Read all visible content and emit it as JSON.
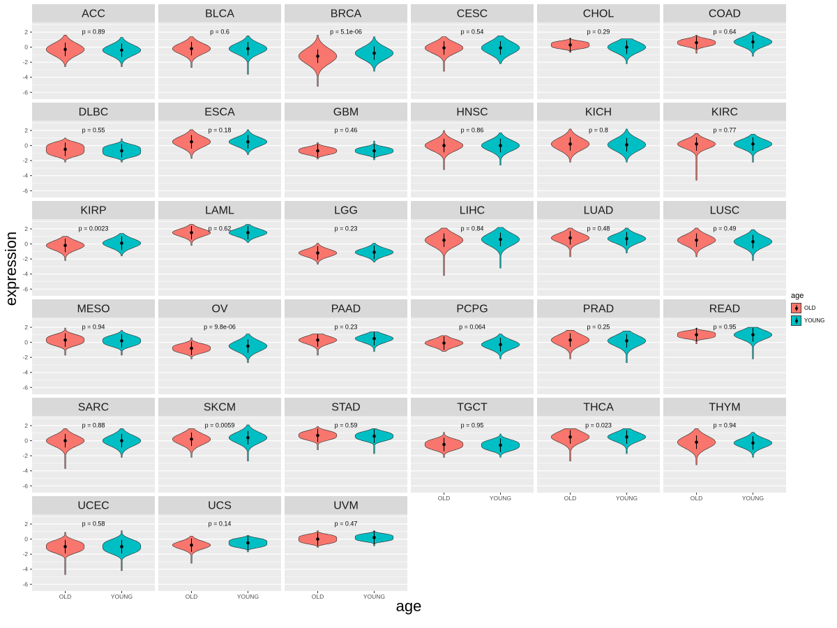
{
  "chart_data": {
    "type": "violin",
    "title": "",
    "xlabel": "age",
    "ylabel": "expression",
    "x_categories": [
      "OLD",
      "YOUNG"
    ],
    "y_ticks": [
      2,
      0,
      -2,
      -4,
      -6
    ],
    "y_minor_ticks": [
      3,
      1,
      -1,
      -3,
      -5
    ],
    "ylim": [
      -6.9,
      3.3
    ],
    "layout": {
      "ncol": 6,
      "legend_position": "right",
      "grid": "on"
    },
    "colors": {
      "old": "#F8766D",
      "young": "#00BFC4",
      "panel_bg": "#EBEBEB",
      "strip_bg": "#D9D9D9",
      "grid": "#FFFFFF",
      "stroke": "#262626",
      "tick_text": "#4d4d4d"
    },
    "legend": {
      "title": "age",
      "entries": [
        {
          "label": "OLD",
          "color": "#F8766D"
        },
        {
          "label": "YOUNG",
          "color": "#00BFC4"
        }
      ]
    },
    "facets": [
      {
        "name": "ACC",
        "p": "p = 0.89",
        "old": {
          "m": -0.3,
          "s": 0.8,
          "lo": -2.6,
          "hi": 1.6
        },
        "young": {
          "m": -0.4,
          "s": 0.7,
          "lo": -2.6,
          "hi": 1.3
        }
      },
      {
        "name": "BLCA",
        "p": "p = 0.6",
        "old": {
          "m": -0.2,
          "s": 0.7,
          "lo": -2.7,
          "hi": 1.4
        },
        "young": {
          "m": -0.2,
          "s": 0.7,
          "lo": -3.6,
          "hi": 1.5
        }
      },
      {
        "name": "BRCA",
        "p": "p = 5.1e-06",
        "old": {
          "m": -1.2,
          "s": 1.0,
          "lo": -5.2,
          "hi": 1.6
        },
        "young": {
          "m": -0.8,
          "s": 0.8,
          "lo": -3.2,
          "hi": 1.4
        }
      },
      {
        "name": "CESC",
        "p": "p = 0.54",
        "old": {
          "m": -0.1,
          "s": 0.7,
          "lo": -3.2,
          "hi": 1.4
        },
        "young": {
          "m": -0.1,
          "s": 0.8,
          "lo": -2.2,
          "hi": 1.5
        }
      },
      {
        "name": "CHOL",
        "p": "p = 0.29",
        "old": {
          "m": 0.3,
          "s": 0.5,
          "lo": -0.7,
          "hi": 1.2,
          "k": 4
        },
        "young": {
          "m": 0.0,
          "s": 0.7,
          "lo": -2.2,
          "hi": 1.1
        }
      },
      {
        "name": "COAD",
        "p": "p = 0.64",
        "old": {
          "m": 0.6,
          "s": 0.5,
          "lo": -0.8,
          "hi": 1.6,
          "k": 3
        },
        "young": {
          "m": 0.7,
          "s": 0.6,
          "lo": -1.2,
          "hi": 2.0
        }
      },
      {
        "name": "DLBC",
        "p": "p = 0.55",
        "old": {
          "m": -0.5,
          "s": 0.9,
          "lo": -2.2,
          "hi": 1.0,
          "k": 4
        },
        "young": {
          "m": -0.7,
          "s": 0.8,
          "lo": -2.2,
          "hi": 0.9,
          "k": 4
        }
      },
      {
        "name": "ESCA",
        "p": "p = 0.18",
        "old": {
          "m": 0.5,
          "s": 0.7,
          "lo": -1.7,
          "hi": 2.1
        },
        "young": {
          "m": 0.5,
          "s": 0.6,
          "lo": -1.2,
          "hi": 2.1
        }
      },
      {
        "name": "GBM",
        "p": "p = 0.46",
        "old": {
          "m": -0.7,
          "s": 0.5,
          "lo": -1.8,
          "hi": 0.4,
          "k": 3
        },
        "young": {
          "m": -0.7,
          "s": 0.5,
          "lo": -1.9,
          "hi": 0.6,
          "k": 3
        }
      },
      {
        "name": "HNSC",
        "p": "p = 0.86",
        "old": {
          "m": 0.0,
          "s": 0.7,
          "lo": -3.2,
          "hi": 2.0
        },
        "young": {
          "m": 0.0,
          "s": 0.7,
          "lo": -2.6,
          "hi": 1.7
        }
      },
      {
        "name": "KICH",
        "p": "p = 0.8",
        "old": {
          "m": 0.2,
          "s": 0.8,
          "lo": -2.2,
          "hi": 2.2
        },
        "young": {
          "m": 0.1,
          "s": 0.8,
          "lo": -2.2,
          "hi": 2.2
        }
      },
      {
        "name": "KIRC",
        "p": "p = 0.77",
        "old": {
          "m": 0.2,
          "s": 0.6,
          "lo": -4.6,
          "hi": 1.6
        },
        "young": {
          "m": 0.2,
          "s": 0.6,
          "lo": -2.2,
          "hi": 1.5
        }
      },
      {
        "name": "KIRP",
        "p": "p = 0.0023",
        "old": {
          "m": -0.2,
          "s": 0.6,
          "lo": -2.2,
          "hi": 1.0
        },
        "young": {
          "m": 0.1,
          "s": 0.6,
          "lo": -1.6,
          "hi": 1.4
        }
      },
      {
        "name": "LAML",
        "p": "p = 0.62",
        "old": {
          "m": 1.5,
          "s": 0.5,
          "lo": -0.2,
          "hi": 2.6
        },
        "young": {
          "m": 1.5,
          "s": 0.5,
          "lo": 0.2,
          "hi": 2.6
        }
      },
      {
        "name": "LGG",
        "p": "p = 0.23",
        "old": {
          "m": -1.2,
          "s": 0.5,
          "lo": -2.7,
          "hi": 0.1
        },
        "young": {
          "m": -1.1,
          "s": 0.5,
          "lo": -2.4,
          "hi": 0.1
        }
      },
      {
        "name": "LIHC",
        "p": "p = 0.84",
        "old": {
          "m": 0.5,
          "s": 0.8,
          "lo": -4.2,
          "hi": 2.1
        },
        "young": {
          "m": 0.6,
          "s": 0.8,
          "lo": -3.2,
          "hi": 2.2
        }
      },
      {
        "name": "LUAD",
        "p": "p = 0.48",
        "old": {
          "m": 0.8,
          "s": 0.6,
          "lo": -1.7,
          "hi": 2.1
        },
        "young": {
          "m": 0.7,
          "s": 0.6,
          "lo": -1.2,
          "hi": 2.1
        }
      },
      {
        "name": "LUSC",
        "p": "p = 0.49",
        "old": {
          "m": 0.5,
          "s": 0.7,
          "lo": -1.7,
          "hi": 2.1
        },
        "young": {
          "m": 0.3,
          "s": 0.7,
          "lo": -2.2,
          "hi": 1.9
        }
      },
      {
        "name": "MESO",
        "p": "p = 0.94",
        "old": {
          "m": 0.3,
          "s": 0.7,
          "lo": -1.7,
          "hi": 1.9,
          "k": 3
        },
        "young": {
          "m": 0.2,
          "s": 0.7,
          "lo": -1.7,
          "hi": 1.6,
          "k": 3
        }
      },
      {
        "name": "OV",
        "p": "p = 9.8e-06",
        "old": {
          "m": -0.8,
          "s": 0.6,
          "lo": -2.2,
          "hi": 0.6,
          "k": 3
        },
        "young": {
          "m": -0.5,
          "s": 0.7,
          "lo": -2.7,
          "hi": 1.1
        }
      },
      {
        "name": "PAAD",
        "p": "p = 0.23",
        "old": {
          "m": 0.3,
          "s": 0.5,
          "lo": -1.7,
          "hi": 1.1
        },
        "young": {
          "m": 0.5,
          "s": 0.5,
          "lo": -1.2,
          "hi": 1.4
        }
      },
      {
        "name": "PCPG",
        "p": "p = 0.064",
        "old": {
          "m": -0.1,
          "s": 0.5,
          "lo": -1.2,
          "hi": 0.9
        },
        "young": {
          "m": -0.3,
          "s": 0.6,
          "lo": -2.2,
          "hi": 1.1
        }
      },
      {
        "name": "PRAD",
        "p": "p = 0.25",
        "old": {
          "m": 0.3,
          "s": 0.7,
          "lo": -2.2,
          "hi": 1.6
        },
        "young": {
          "m": 0.2,
          "s": 0.7,
          "lo": -2.7,
          "hi": 1.5
        }
      },
      {
        "name": "READ",
        "p": "p = 0.95",
        "old": {
          "m": 1.0,
          "s": 0.5,
          "lo": -0.2,
          "hi": 1.9,
          "k": 4
        },
        "young": {
          "m": 1.0,
          "s": 0.6,
          "lo": -2.2,
          "hi": 2.0
        }
      },
      {
        "name": "SARC",
        "p": "p = 0.88",
        "old": {
          "m": 0.0,
          "s": 0.7,
          "lo": -3.7,
          "hi": 1.6
        },
        "young": {
          "m": 0.0,
          "s": 0.7,
          "lo": -2.2,
          "hi": 1.6
        }
      },
      {
        "name": "SKCM",
        "p": "p = 0.0059",
        "old": {
          "m": 0.2,
          "s": 0.7,
          "lo": -2.2,
          "hi": 1.6
        },
        "young": {
          "m": 0.4,
          "s": 0.7,
          "lo": -2.7,
          "hi": 2.1
        }
      },
      {
        "name": "STAD",
        "p": "p = 0.59",
        "old": {
          "m": 0.7,
          "s": 0.6,
          "lo": -1.2,
          "hi": 1.9,
          "k": 3
        },
        "young": {
          "m": 0.6,
          "s": 0.6,
          "lo": -1.7,
          "hi": 1.6,
          "k": 3
        }
      },
      {
        "name": "TGCT",
        "p": "p = 0.95",
        "old": {
          "m": -0.5,
          "s": 0.7,
          "lo": -2.2,
          "hi": 1.1,
          "k": 3
        },
        "young": {
          "m": -0.6,
          "s": 0.7,
          "lo": -2.2,
          "hi": 0.9,
          "k": 3
        }
      },
      {
        "name": "THCA",
        "p": "p = 0.023",
        "old": {
          "m": 0.5,
          "s": 0.7,
          "lo": -2.7,
          "hi": 1.6
        },
        "young": {
          "m": 0.5,
          "s": 0.6,
          "lo": -1.7,
          "hi": 1.6
        }
      },
      {
        "name": "THYM",
        "p": "p = 0.94",
        "old": {
          "m": -0.2,
          "s": 0.8,
          "lo": -3.2,
          "hi": 1.6
        },
        "young": {
          "m": -0.3,
          "s": 0.6,
          "lo": -2.2,
          "hi": 1.1
        }
      },
      {
        "name": "UCEC",
        "p": "p = 0.58",
        "old": {
          "m": -1.0,
          "s": 0.8,
          "lo": -4.7,
          "hi": 0.9,
          "k": 3
        },
        "young": {
          "m": -1.0,
          "s": 0.9,
          "lo": -4.2,
          "hi": 1.1,
          "k": 3
        }
      },
      {
        "name": "UCS",
        "p": "p = 0.14",
        "old": {
          "m": -0.8,
          "s": 0.5,
          "lo": -3.2,
          "hi": 0.4
        },
        "young": {
          "m": -0.5,
          "s": 0.6,
          "lo": -1.7,
          "hi": 0.5,
          "k": 4
        }
      },
      {
        "name": "UVM",
        "p": "p = 0.47",
        "old": {
          "m": 0.0,
          "s": 0.6,
          "lo": -1.1,
          "hi": 1.1,
          "k": 4
        },
        "young": {
          "m": 0.2,
          "s": 0.5,
          "lo": -0.9,
          "hi": 1.1,
          "k": 4
        }
      }
    ]
  }
}
